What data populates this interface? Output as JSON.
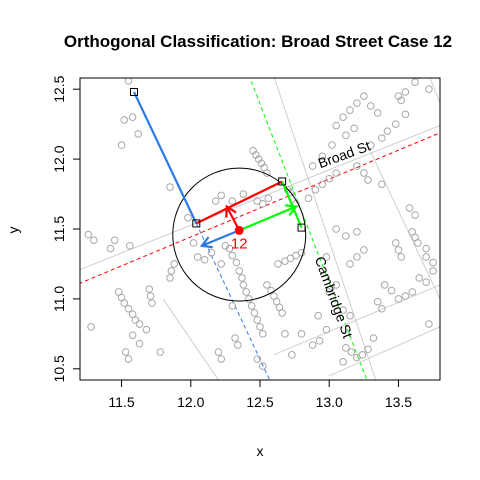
{
  "chart_data": {
    "type": "scatter",
    "title": "Orthogonal Classification: Broad Street Case 12",
    "xlabel": "x",
    "ylabel": "y",
    "xlim": [
      11.2,
      13.8
    ],
    "ylim": [
      10.42,
      12.58
    ],
    "xticks": [
      "11.5",
      "12.0",
      "12.5",
      "13.0",
      "13.5"
    ],
    "xtick_values": [
      11.5,
      12.0,
      12.5,
      13.0,
      13.5
    ],
    "yticks": [
      "10.5",
      "11.0",
      "11.5",
      "12.0",
      "12.5"
    ],
    "ytick_values": [
      10.5,
      11.0,
      11.5,
      12.0,
      12.5
    ],
    "grid": false,
    "colors": {
      "case_point": "#ff0000",
      "broad_st_arrow": "#ff0000",
      "cambridge_st_arrow": "#00ff00",
      "other_arrow": "#2b7be4",
      "background_points": "#a8a8a8",
      "road_lines": "#cfcfcf",
      "circle": "#000000"
    },
    "case_point": {
      "x": 12.35,
      "y": 11.49,
      "label": "12"
    },
    "search_circle": {
      "cx": 12.35,
      "cy": 11.46,
      "r": 0.48
    },
    "streets": [
      {
        "name": "Broad St",
        "x": 13.12,
        "y": 12.0,
        "angle": -20
      },
      {
        "name": "Cambridge St",
        "x": 13.0,
        "y": 11.0,
        "angle": 70
      }
    ],
    "road_segments": [
      {
        "x1": 11.05,
        "y1": 11.05,
        "x2": 13.95,
        "y2": 12.25,
        "color": "red",
        "dash": "dashed"
      },
      {
        "x1": 11.05,
        "y1": 11.15,
        "x2": 13.95,
        "y2": 12.3,
        "color": "lightgray",
        "dash": "solid"
      },
      {
        "x1": 12.4,
        "y1": 12.65,
        "x2": 13.3,
        "y2": 10.35,
        "color": "green",
        "dash": "dashed"
      },
      {
        "x1": 12.04,
        "y1": 11.54,
        "x2": 12.57,
        "y2": 10.42,
        "color": "blue",
        "dash": "dashed"
      },
      {
        "x1": 12.58,
        "y1": 12.65,
        "x2": 13.36,
        "y2": 10.35,
        "color": "lightgray",
        "dash": "solid"
      },
      {
        "x1": 13.72,
        "y1": 12.6,
        "x2": 14.0,
        "y2": 11.9,
        "color": "lightgray",
        "dash": "solid"
      },
      {
        "x1": 13.3,
        "y1": 12.05,
        "x2": 13.8,
        "y2": 11.0,
        "color": "lightgray",
        "dash": "solid"
      },
      {
        "x1": 11.8,
        "y1": 11.0,
        "x2": 12.2,
        "y2": 10.42,
        "color": "lightgray",
        "dash": "solid"
      },
      {
        "x1": 12.6,
        "y1": 10.6,
        "x2": 13.8,
        "y2": 11.1,
        "color": "lightgray",
        "dash": "solid"
      },
      {
        "x1": 13.0,
        "y1": 10.45,
        "x2": 13.8,
        "y2": 10.8,
        "color": "lightgray",
        "dash": "solid"
      }
    ],
    "orthogonal_segments": [
      {
        "x1": 11.59,
        "y1": 12.48,
        "x2": 12.04,
        "y2": 11.54,
        "color": "blue"
      },
      {
        "x1": 12.04,
        "y1": 11.54,
        "x2": 12.66,
        "y2": 11.84,
        "color": "red"
      },
      {
        "x1": 12.66,
        "y1": 11.84,
        "x2": 12.8,
        "y2": 11.51,
        "color": "green"
      }
    ],
    "segment_endpoints": [
      {
        "x": 11.59,
        "y": 12.48
      },
      {
        "x": 12.04,
        "y": 11.54
      },
      {
        "x": 12.66,
        "y": 11.84
      },
      {
        "x": 12.8,
        "y": 11.51
      }
    ],
    "arrows": [
      {
        "x1": 12.35,
        "y1": 11.49,
        "x2": 12.26,
        "y2": 11.66,
        "color": "red"
      },
      {
        "x1": 12.35,
        "y1": 11.49,
        "x2": 12.76,
        "y2": 11.66,
        "color": "green"
      },
      {
        "x1": 12.35,
        "y1": 11.49,
        "x2": 12.08,
        "y2": 11.38,
        "color": "blue"
      }
    ],
    "background_points": [
      [
        11.55,
        12.56
      ],
      [
        11.52,
        12.28
      ],
      [
        11.58,
        12.3
      ],
      [
        11.62,
        12.18
      ],
      [
        11.5,
        12.1
      ],
      [
        11.85,
        11.8
      ],
      [
        11.3,
        11.42
      ],
      [
        11.26,
        11.46
      ],
      [
        11.42,
        11.36
      ],
      [
        11.45,
        11.42
      ],
      [
        11.56,
        11.38
      ],
      [
        11.48,
        11.05
      ],
      [
        11.5,
        11.01
      ],
      [
        11.52,
        10.97
      ],
      [
        11.55,
        10.93
      ],
      [
        11.58,
        10.89
      ],
      [
        11.6,
        10.85
      ],
      [
        11.63,
        10.82
      ],
      [
        11.68,
        10.78
      ],
      [
        11.28,
        10.8
      ],
      [
        11.58,
        10.74
      ],
      [
        11.63,
        10.68
      ],
      [
        11.53,
        10.62
      ],
      [
        11.55,
        10.57
      ],
      [
        11.78,
        10.62
      ],
      [
        11.7,
        11.07
      ],
      [
        11.71,
        11.02
      ],
      [
        11.72,
        10.97
      ],
      [
        11.85,
        11.15
      ],
      [
        11.86,
        11.2
      ],
      [
        11.88,
        11.25
      ],
      [
        12.05,
        11.3
      ],
      [
        12.1,
        11.28
      ],
      [
        12.15,
        11.33
      ],
      [
        12.22,
        11.25
      ],
      [
        12.02,
        11.4
      ],
      [
        12.25,
        11.38
      ],
      [
        12.28,
        11.36
      ],
      [
        12.3,
        11.31
      ],
      [
        12.33,
        11.26
      ],
      [
        12.35,
        11.2
      ],
      [
        12.37,
        11.15
      ],
      [
        12.38,
        11.1
      ],
      [
        12.4,
        11.05
      ],
      [
        12.42,
        11.0
      ],
      [
        12.44,
        10.95
      ],
      [
        12.46,
        10.9
      ],
      [
        12.48,
        10.85
      ],
      [
        12.5,
        10.8
      ],
      [
        12.52,
        10.75
      ],
      [
        12.32,
        10.72
      ],
      [
        12.34,
        10.67
      ],
      [
        12.2,
        10.62
      ],
      [
        12.22,
        10.57
      ],
      [
        12.48,
        10.57
      ],
      [
        12.52,
        10.52
      ],
      [
        12.73,
        10.6
      ],
      [
        12.8,
        10.75
      ],
      [
        12.92,
        10.88
      ],
      [
        12.88,
        10.67
      ],
      [
        12.63,
        11.25
      ],
      [
        12.68,
        11.27
      ],
      [
        12.72,
        11.29
      ],
      [
        12.76,
        11.31
      ],
      [
        12.8,
        11.33
      ],
      [
        12.55,
        11.1
      ],
      [
        12.58,
        11.06
      ],
      [
        12.6,
        11.02
      ],
      [
        12.62,
        10.98
      ],
      [
        12.64,
        10.94
      ],
      [
        12.66,
        10.9
      ],
      [
        12.3,
        10.95
      ],
      [
        12.68,
        10.75
      ],
      [
        11.98,
        11.58
      ],
      [
        12.18,
        11.7
      ],
      [
        12.22,
        11.74
      ],
      [
        12.3,
        11.7
      ],
      [
        12.48,
        11.7
      ],
      [
        12.52,
        11.68
      ],
      [
        12.56,
        11.72
      ],
      [
        12.38,
        11.75
      ],
      [
        12.45,
        12.06
      ],
      [
        12.47,
        12.03
      ],
      [
        12.49,
        12.0
      ],
      [
        12.51,
        11.97
      ],
      [
        12.53,
        11.94
      ],
      [
        12.55,
        11.9
      ],
      [
        12.7,
        11.78
      ],
      [
        12.72,
        11.76
      ],
      [
        12.76,
        11.68
      ],
      [
        12.85,
        11.72
      ],
      [
        12.9,
        11.78
      ],
      [
        12.95,
        11.82
      ],
      [
        13.0,
        11.86
      ],
      [
        13.05,
        11.9
      ],
      [
        12.88,
        11.95
      ],
      [
        12.95,
        12.02
      ],
      [
        13.02,
        12.1
      ],
      [
        13.05,
        12.24
      ],
      [
        13.1,
        12.3
      ],
      [
        13.15,
        12.35
      ],
      [
        13.2,
        12.4
      ],
      [
        13.25,
        12.45
      ],
      [
        13.3,
        12.38
      ],
      [
        13.35,
        12.33
      ],
      [
        13.12,
        12.17
      ],
      [
        13.18,
        12.22
      ],
      [
        13.3,
        12.1
      ],
      [
        13.38,
        12.15
      ],
      [
        13.42,
        12.2
      ],
      [
        13.5,
        12.45
      ],
      [
        13.52,
        12.42
      ],
      [
        13.55,
        12.48
      ],
      [
        13.62,
        12.55
      ],
      [
        13.65,
        12.6
      ],
      [
        13.72,
        12.5
      ],
      [
        13.48,
        12.25
      ],
      [
        13.55,
        12.32
      ],
      [
        13.2,
        11.95
      ],
      [
        13.25,
        11.9
      ],
      [
        13.28,
        11.85
      ],
      [
        13.38,
        11.82
      ],
      [
        13.58,
        11.65
      ],
      [
        13.62,
        11.6
      ],
      [
        13.48,
        11.4
      ],
      [
        13.5,
        11.35
      ],
      [
        13.52,
        11.3
      ],
      [
        13.6,
        11.48
      ],
      [
        13.62,
        11.44
      ],
      [
        13.64,
        11.4
      ],
      [
        13.7,
        11.36
      ],
      [
        13.75,
        11.2
      ],
      [
        13.65,
        11.15
      ],
      [
        13.7,
        11.12
      ],
      [
        13.6,
        11.05
      ],
      [
        13.55,
        11.02
      ],
      [
        13.5,
        11.0
      ],
      [
        13.45,
        11.06
      ],
      [
        13.4,
        11.1
      ],
      [
        13.35,
        10.98
      ],
      [
        13.38,
        10.93
      ],
      [
        13.7,
        11.3
      ],
      [
        13.75,
        11.26
      ],
      [
        13.72,
        10.82
      ],
      [
        13.15,
        11.25
      ],
      [
        13.2,
        11.3
      ],
      [
        13.25,
        11.35
      ],
      [
        13.05,
        11.5
      ],
      [
        13.12,
        11.45
      ],
      [
        13.2,
        11.48
      ],
      [
        12.98,
        11.3
      ],
      [
        13.05,
        11.1
      ],
      [
        13.0,
        11.05
      ],
      [
        13.1,
        10.92
      ],
      [
        13.15,
        10.88
      ],
      [
        13.12,
        10.65
      ],
      [
        13.16,
        10.62
      ],
      [
        13.2,
        10.58
      ],
      [
        13.24,
        10.6
      ],
      [
        13.28,
        10.64
      ],
      [
        13.1,
        10.55
      ],
      [
        13.32,
        10.72
      ],
      [
        12.98,
        10.78
      ],
      [
        12.93,
        10.7
      ]
    ]
  }
}
